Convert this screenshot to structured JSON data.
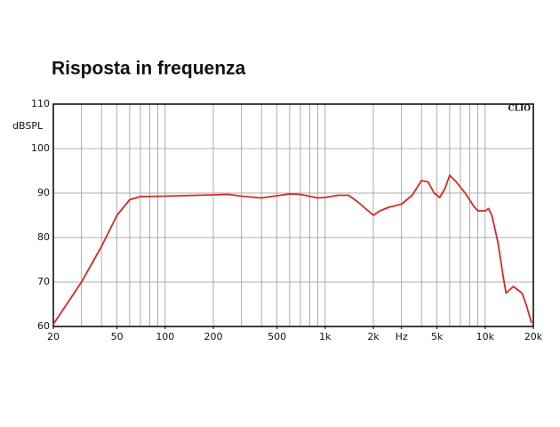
{
  "chart_data": {
    "type": "line",
    "title": "Risposta in frequenza",
    "y_label": "dBSPL",
    "annotation": "CLIO",
    "x_scale": "log",
    "xlim": [
      20,
      20000
    ],
    "ylim": [
      60,
      110
    ],
    "xticks": [
      20,
      50,
      100,
      200,
      500,
      {
        "value": 1000,
        "label": "1k"
      },
      {
        "value": 2000,
        "label": "2k"
      },
      {
        "value": 3000,
        "label": "Hz"
      },
      {
        "value": 5000,
        "label": "5k"
      },
      {
        "value": 10000,
        "label": "10k"
      },
      {
        "value": 20000,
        "label": "20k"
      }
    ],
    "xgrid": [
      20,
      30,
      40,
      50,
      60,
      70,
      80,
      90,
      100,
      200,
      300,
      400,
      500,
      600,
      700,
      800,
      900,
      1000,
      2000,
      3000,
      4000,
      5000,
      6000,
      7000,
      8000,
      9000,
      10000,
      20000
    ],
    "yticks": [
      60,
      70,
      80,
      90,
      100,
      110
    ],
    "grid": true,
    "x": [
      20,
      30,
      40,
      50,
      60,
      70,
      100,
      200,
      250,
      300,
      400,
      500,
      600,
      700,
      900,
      1000,
      1200,
      1400,
      1600,
      2000,
      2200,
      2500,
      3000,
      3500,
      4000,
      4400,
      4800,
      5200,
      5600,
      6000,
      6600,
      7500,
      8500,
      9000,
      10000,
      10500,
      11000,
      12000,
      13000,
      13500,
      14000,
      15000,
      16000,
      17000,
      18000,
      19500
    ],
    "series": [
      {
        "name": "response",
        "color": "#d42a22",
        "values": [
          60.5,
          70,
          78,
          85,
          88.5,
          89.2,
          89.3,
          89.6,
          89.7,
          89.3,
          88.9,
          89.4,
          89.8,
          89.7,
          88.9,
          89.0,
          89.5,
          89.5,
          88.0,
          85.0,
          86.0,
          86.8,
          87.5,
          89.5,
          92.8,
          92.5,
          90.0,
          89.0,
          91.0,
          94.0,
          92.5,
          90.0,
          87.0,
          86.0,
          86.0,
          86.5,
          85.0,
          79.0,
          71.0,
          67.5,
          68.0,
          69.0,
          68.2,
          67.5,
          65.0,
          60.8
        ]
      }
    ]
  }
}
